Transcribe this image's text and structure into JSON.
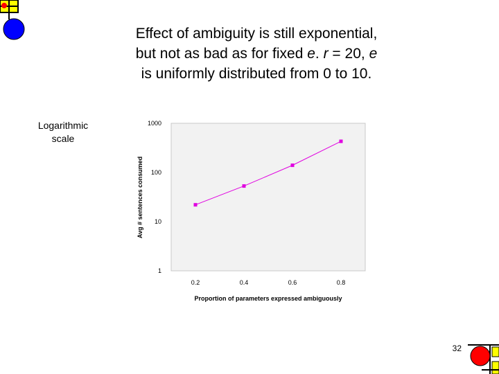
{
  "slide": {
    "title_line1": "Effect of ambiguity is still exponential,",
    "title_line2_a": "but not as bad as for fixed ",
    "title_line2_e": "e",
    "title_line2_b": ". ",
    "title_line2_r": "r",
    "title_line2_c": " = 20, ",
    "title_line2_e2": "e",
    "title_line3": "is uniformly distributed from 0 to 10.",
    "side_note_line1": "Logarithmic",
    "side_note_line2": "scale",
    "page_number": "32"
  },
  "colors": {
    "series": "#e000e0",
    "plot_area": "#f2f2f2",
    "deco_blue": "#0000ff",
    "deco_red": "#ff0000",
    "deco_yellow": "#ffff00"
  },
  "chart_data": {
    "type": "line",
    "x": [
      0.2,
      0.4,
      0.6,
      0.8
    ],
    "series": [
      {
        "values": [
          22,
          53,
          140,
          430
        ]
      }
    ],
    "xlabel": "Proportion of parameters expressed ambiguously",
    "ylabel": "Avg # sentences consumed",
    "x_tick_labels": [
      "0.2",
      "0.4",
      "0.6",
      "0.8"
    ],
    "y_tick_labels": [
      "1000",
      "100",
      "10",
      "1"
    ],
    "y_ticks": [
      1000,
      100,
      10,
      1
    ],
    "xlim": [
      0.1,
      0.9
    ],
    "ylim": [
      1,
      1000
    ],
    "yscale": "log",
    "grid": false,
    "legend": "none"
  }
}
